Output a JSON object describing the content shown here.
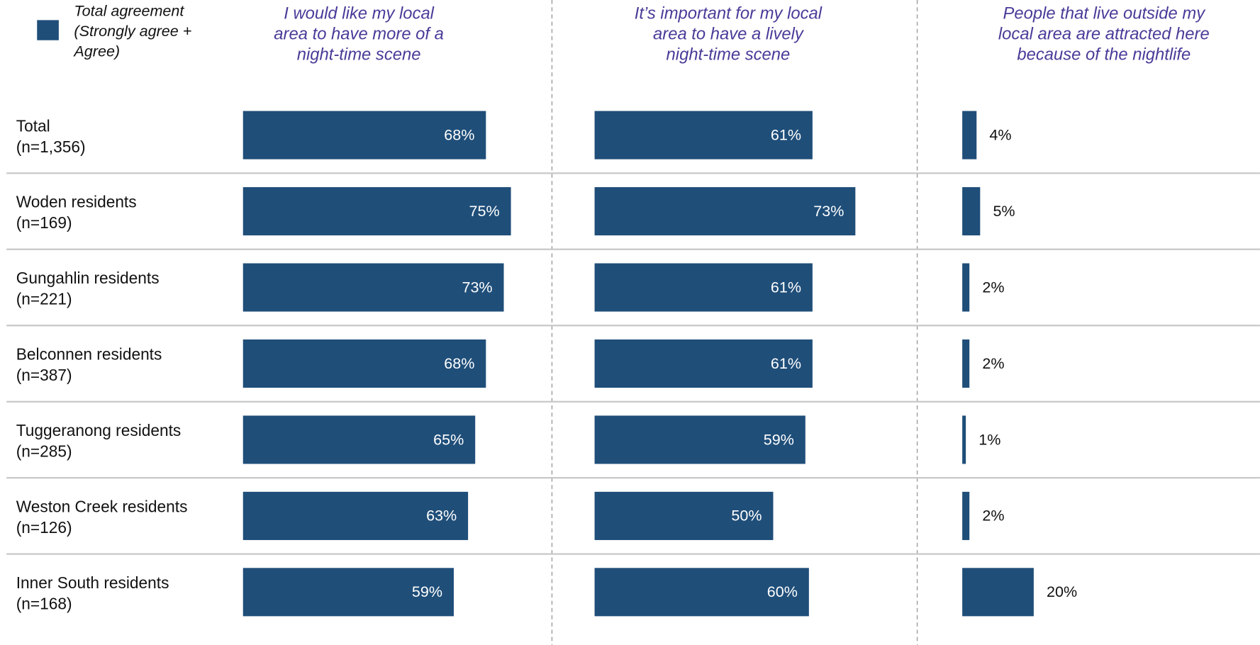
{
  "legend": {
    "label": [
      "Total agreement",
      "(Strongly agree +",
      "Agree)"
    ],
    "color": "#1f4e79"
  },
  "categories": [
    "Total",
    "Woden residents",
    "Gungahlin residents",
    "Belconnen residents",
    "Tuggeranong residents",
    "Weston Creek residents",
    "Inner South residents"
  ],
  "sample_sizes": [
    "(n=1,356)",
    "(n=169)",
    "(n=221)",
    "(n=387)",
    "(n=285)",
    "(n=126)",
    "(n=168)"
  ],
  "chart_data": [
    {
      "type": "bar",
      "orientation": "horizontal",
      "title": [
        "I would like my local",
        "area to have more of a",
        "night-time scene"
      ],
      "values": [
        68,
        75,
        73,
        68,
        65,
        63,
        59
      ],
      "value_labels": [
        "68%",
        "75%",
        "73%",
        "68%",
        "65%",
        "63%",
        "59%"
      ],
      "color": "#1f4e79",
      "label_position": "inside"
    },
    {
      "type": "bar",
      "orientation": "horizontal",
      "title": [
        "It’s important for my local",
        "area to have a lively",
        "night-time scene"
      ],
      "values": [
        61,
        73,
        61,
        61,
        59,
        50,
        60
      ],
      "value_labels": [
        "61%",
        "73%",
        "61%",
        "61%",
        "59%",
        "50%",
        "60%"
      ],
      "color": "#1f4e79",
      "label_position": "inside"
    },
    {
      "type": "bar",
      "orientation": "horizontal",
      "title": [
        "People that live outside my",
        "local area are attracted here",
        "because of the nightlife"
      ],
      "values": [
        4,
        5,
        2,
        2,
        1,
        2,
        20
      ],
      "value_labels": [
        "4%",
        "5%",
        "2%",
        "2%",
        "1%",
        "2%",
        "20%"
      ],
      "color": "#1f4e79",
      "label_position": "outside"
    }
  ]
}
